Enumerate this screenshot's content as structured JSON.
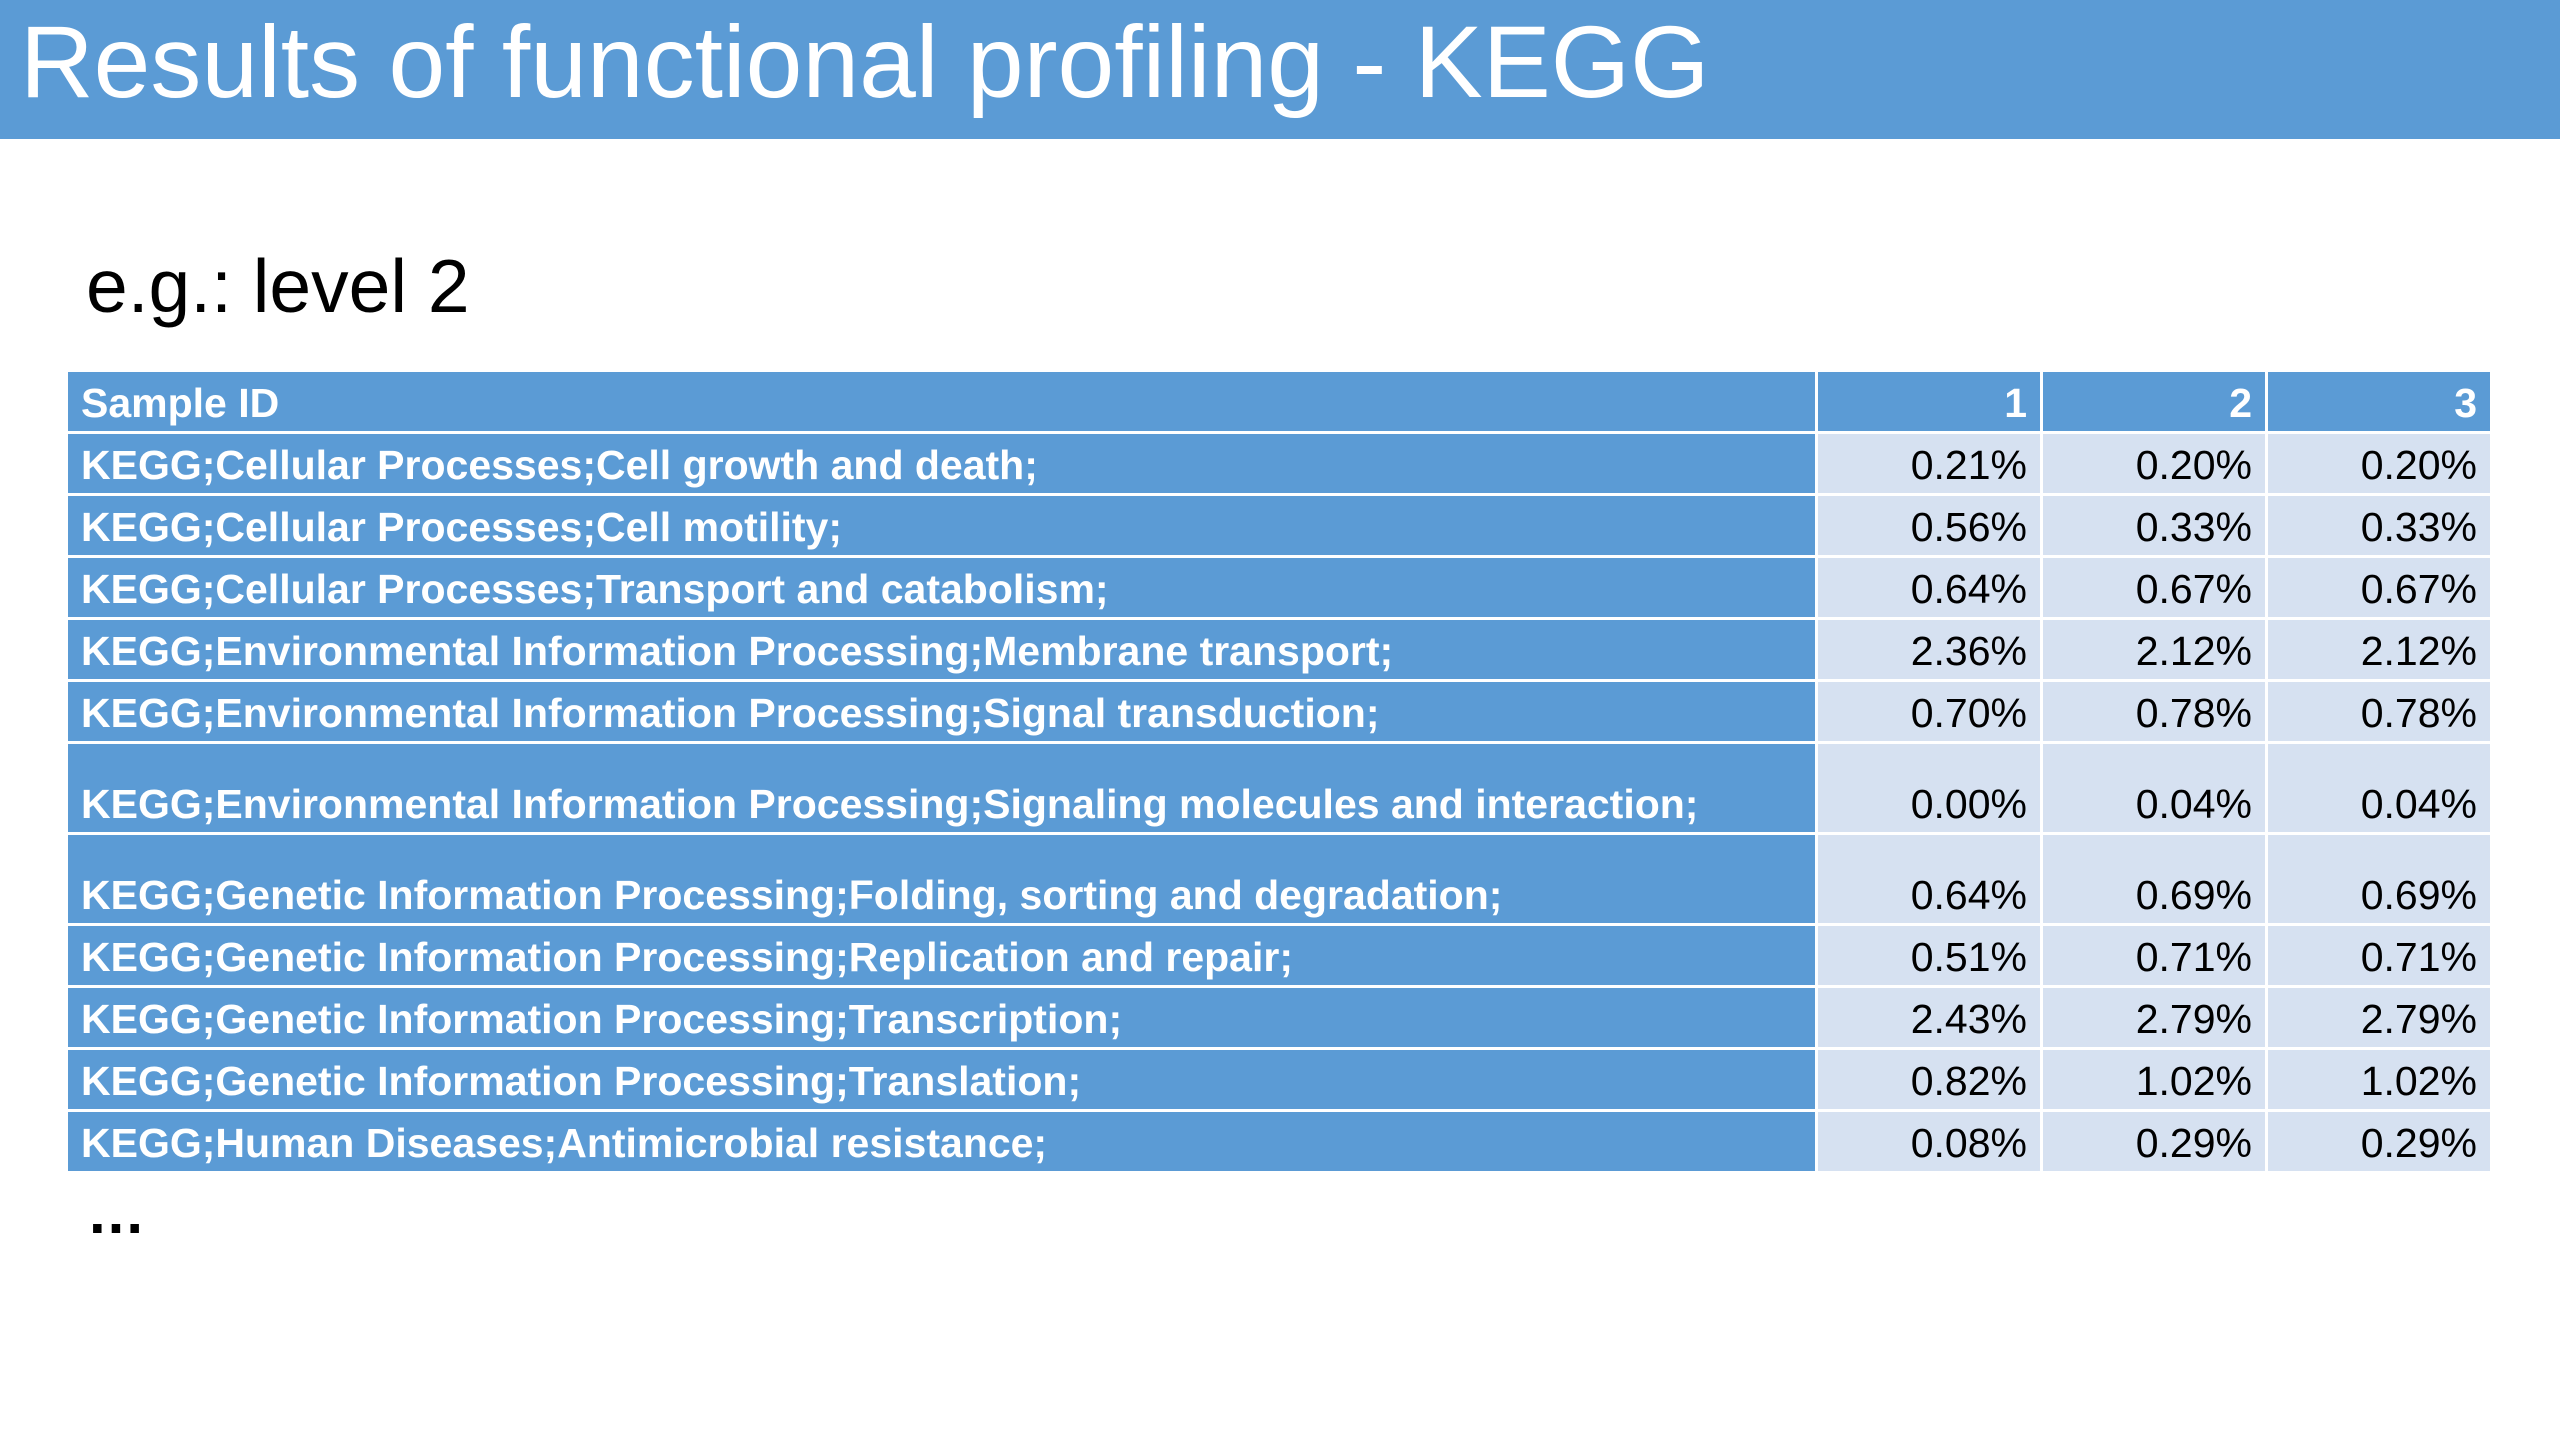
{
  "slide": {
    "title": "Results of functional profiling - KEGG",
    "subtitle": "e.g.: level 2",
    "ellipsis": "..."
  },
  "table": {
    "header": {
      "label": "Sample ID",
      "cols": [
        "1",
        "2",
        "3"
      ]
    },
    "rows": [
      {
        "label": "KEGG;Cellular Processes;Cell growth and death;",
        "values": [
          "0.21%",
          "0.20%",
          "0.20%"
        ]
      },
      {
        "label": "KEGG;Cellular Processes;Cell motility;",
        "values": [
          "0.56%",
          "0.33%",
          "0.33%"
        ]
      },
      {
        "label": "KEGG;Cellular Processes;Transport and catabolism;",
        "values": [
          "0.64%",
          "0.67%",
          "0.67%"
        ]
      },
      {
        "label": "KEGG;Environmental Information Processing;Membrane transport;",
        "values": [
          "2.36%",
          "2.12%",
          "2.12%"
        ]
      },
      {
        "label": "KEGG;Environmental Information Processing;Signal transduction;",
        "values": [
          "0.70%",
          "0.78%",
          "0.78%"
        ]
      },
      {
        "label": "KEGG;Environmental Information Processing;Signaling molecules and interaction;",
        "values": [
          "0.00%",
          "0.04%",
          "0.04%"
        ]
      },
      {
        "label": "KEGG;Genetic Information Processing;Folding, sorting and degradation;",
        "values": [
          "0.64%",
          "0.69%",
          "0.69%"
        ]
      },
      {
        "label": "KEGG;Genetic Information Processing;Replication and repair;",
        "values": [
          "0.51%",
          "0.71%",
          "0.71%"
        ]
      },
      {
        "label": "KEGG;Genetic Information Processing;Transcription;",
        "values": [
          "2.43%",
          "2.79%",
          "2.79%"
        ]
      },
      {
        "label": "KEGG;Genetic Information Processing;Translation;",
        "values": [
          "0.82%",
          "1.02%",
          "1.02%"
        ]
      },
      {
        "label": "KEGG;Human Diseases;Antimicrobial resistance;",
        "values": [
          "0.08%",
          "0.29%",
          "0.29%"
        ]
      }
    ]
  },
  "colors": {
    "accent": "#5b9bd5",
    "cell_fill": "#d6e1f1"
  }
}
